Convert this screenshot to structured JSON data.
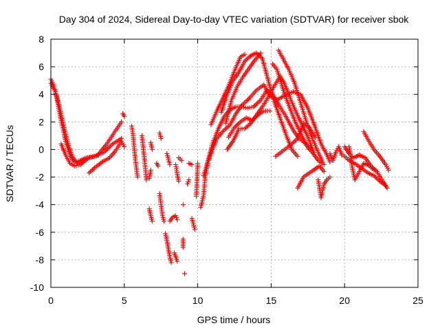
{
  "colors": {
    "series": "#ff0000",
    "grid": "#a0a0a0",
    "axis": "#000000"
  },
  "chart_data": {
    "type": "scatter",
    "title": "Day 304 of 2024, Sidereal Day-to-day VTEC variation (SDTVAR) for receiver sbok",
    "xlabel": "GPS time / hours",
    "ylabel": "SDTVAR / TECUs",
    "xlim": [
      0,
      25
    ],
    "ylim": [
      -10,
      8
    ],
    "xticks": [
      0,
      5,
      10,
      15,
      20,
      25
    ],
    "yticks": [
      -10,
      -8,
      -6,
      -4,
      -2,
      0,
      2,
      4,
      6,
      8
    ],
    "grid": true,
    "marker": "+",
    "traces": [
      [
        [
          0.0,
          5.1
        ],
        [
          0.2,
          4.6
        ],
        [
          0.4,
          3.8
        ],
        [
          0.6,
          2.6
        ],
        [
          0.8,
          1.6
        ],
        [
          1.0,
          0.6
        ],
        [
          1.3,
          -0.4
        ],
        [
          1.6,
          -0.9
        ],
        [
          2.0,
          -0.8
        ],
        [
          2.4,
          -0.6
        ],
        [
          3.0,
          -0.5
        ],
        [
          3.6,
          -0.2
        ],
        [
          4.2,
          0.4
        ],
        [
          4.8,
          0.8
        ]
      ],
      [
        [
          0.0,
          4.8
        ],
        [
          0.3,
          4.2
        ],
        [
          0.6,
          3.0
        ],
        [
          0.9,
          1.6
        ],
        [
          1.2,
          0.3
        ],
        [
          1.5,
          -0.6
        ],
        [
          1.8,
          -1.0
        ],
        [
          2.2,
          -0.9
        ],
        [
          2.6,
          -0.6
        ],
        [
          3.2,
          -0.4
        ],
        [
          3.8,
          0.4
        ],
        [
          4.3,
          1.2
        ],
        [
          4.8,
          2.0
        ]
      ],
      [
        [
          0.7,
          0.4
        ],
        [
          1.0,
          -0.4
        ],
        [
          1.3,
          -1.0
        ],
        [
          1.6,
          -1.2
        ],
        [
          2.0,
          -1.1
        ],
        [
          2.5,
          -0.6
        ]
      ],
      [
        [
          2.6,
          -1.7
        ],
        [
          3.0,
          -1.3
        ],
        [
          3.5,
          -0.9
        ],
        [
          4.0,
          -0.6
        ],
        [
          4.4,
          -0.1
        ],
        [
          4.8,
          0.6
        ],
        [
          5.0,
          0.2
        ]
      ],
      [
        [
          4.9,
          2.6
        ],
        [
          5.0,
          2.4
        ]
      ],
      [
        [
          5.5,
          1.7
        ],
        [
          5.6,
          1.0
        ],
        [
          5.7,
          -0.2
        ],
        [
          5.8,
          -1.2
        ],
        [
          5.9,
          -2.0
        ]
      ],
      [
        [
          6.2,
          1.0
        ],
        [
          6.3,
          0.0
        ],
        [
          6.4,
          -1.0
        ],
        [
          6.5,
          -2.2
        ]
      ],
      [
        [
          6.7,
          -2.1
        ],
        [
          6.8,
          -1.5
        ]
      ],
      [
        [
          6.8,
          0.5
        ],
        [
          6.9,
          0.0
        ]
      ],
      [
        [
          6.7,
          -4.3
        ],
        [
          6.8,
          -4.8
        ],
        [
          6.9,
          -5.2
        ]
      ],
      [
        [
          7.4,
          1.2
        ],
        [
          7.5,
          0.8
        ]
      ],
      [
        [
          7.2,
          -1.0
        ],
        [
          7.3,
          -1.2
        ]
      ],
      [
        [
          7.4,
          -3.2
        ],
        [
          7.5,
          -4.0
        ],
        [
          7.6,
          -4.8
        ],
        [
          7.7,
          -5.2
        ]
      ],
      [
        [
          7.8,
          -6.1
        ],
        [
          7.9,
          -6.6
        ],
        [
          8.0,
          -7.2
        ],
        [
          8.1,
          -7.8
        ],
        [
          8.2,
          -8.2
        ]
      ],
      [
        [
          7.9,
          -0.3
        ],
        [
          8.0,
          -0.7
        ],
        [
          8.1,
          -1.1
        ]
      ],
      [
        [
          8.1,
          -5.2
        ],
        [
          8.3,
          -4.9
        ],
        [
          8.5,
          -4.8
        ],
        [
          8.6,
          -5.1
        ]
      ],
      [
        [
          8.4,
          -7.5
        ],
        [
          8.6,
          -8.1
        ]
      ],
      [
        [
          8.5,
          -1.1
        ],
        [
          8.6,
          -1.8
        ],
        [
          8.7,
          -2.3
        ]
      ],
      [
        [
          8.7,
          -0.6
        ],
        [
          8.9,
          -0.8
        ]
      ],
      [
        [
          9.0,
          -4.0
        ]
      ],
      [
        [
          9.0,
          -6.5
        ],
        [
          9.0,
          -7.1
        ]
      ],
      [
        [
          9.1,
          -9.0
        ]
      ],
      [
        [
          9.3,
          -2.5
        ],
        [
          9.4,
          -2.2
        ]
      ],
      [
        [
          9.4,
          -1.0
        ],
        [
          9.6,
          -1.1
        ]
      ],
      [
        [
          9.6,
          -5.0
        ],
        [
          9.7,
          -5.4
        ],
        [
          9.8,
          -5.8
        ]
      ],
      [
        [
          9.9,
          -3.4
        ],
        [
          10.0,
          -1.0
        ]
      ],
      [
        [
          10.2,
          -4.2
        ],
        [
          10.4,
          -3.3
        ],
        [
          10.5,
          -2.0
        ],
        [
          10.7,
          -0.9
        ],
        [
          11.0,
          0.0
        ],
        [
          11.3,
          0.8
        ],
        [
          11.7,
          1.3
        ],
        [
          12.2,
          1.8
        ],
        [
          12.6,
          2.6
        ],
        [
          13.0,
          3.2
        ],
        [
          13.5,
          3.7
        ],
        [
          14.0,
          4.3
        ],
        [
          14.5,
          4.7
        ],
        [
          14.9,
          3.9
        ],
        [
          15.4,
          3.6
        ],
        [
          15.9,
          3.9
        ],
        [
          16.5,
          4.2
        ],
        [
          17.0,
          4.0
        ],
        [
          17.5,
          3.0
        ],
        [
          18.0,
          1.6
        ],
        [
          18.4,
          0.4
        ],
        [
          18.8,
          -0.4
        ],
        [
          19.0,
          -0.9
        ]
      ],
      [
        [
          10.4,
          -1.9
        ],
        [
          10.7,
          -0.8
        ],
        [
          11.0,
          0.4
        ],
        [
          11.4,
          1.5
        ],
        [
          11.8,
          2.4
        ],
        [
          12.2,
          2.9
        ],
        [
          12.6,
          3.1
        ],
        [
          13.0,
          3.1
        ],
        [
          13.4,
          3.0
        ],
        [
          13.8,
          3.1
        ],
        [
          14.3,
          3.6
        ],
        [
          14.7,
          4.3
        ],
        [
          15.1,
          4.0
        ],
        [
          15.6,
          3.1
        ],
        [
          16.0,
          2.4
        ],
        [
          16.5,
          1.4
        ],
        [
          16.9,
          0.8
        ],
        [
          17.4,
          0.4
        ],
        [
          17.8,
          -0.2
        ],
        [
          18.2,
          -0.8
        ],
        [
          18.6,
          -1.1
        ]
      ],
      [
        [
          10.9,
          1.8
        ],
        [
          11.3,
          2.8
        ],
        [
          11.7,
          3.7
        ],
        [
          12.1,
          4.6
        ],
        [
          12.5,
          5.7
        ],
        [
          12.9,
          6.7
        ],
        [
          13.2,
          6.9
        ]
      ],
      [
        [
          11.6,
          2.7
        ],
        [
          12.0,
          4.0
        ],
        [
          12.4,
          5.0
        ],
        [
          12.8,
          5.6
        ],
        [
          13.2,
          6.4
        ],
        [
          13.6,
          6.8
        ],
        [
          14.0,
          7.0
        ],
        [
          14.4,
          6.6
        ],
        [
          14.8,
          5.0
        ],
        [
          15.2,
          3.5
        ],
        [
          15.6,
          2.3
        ],
        [
          16.0,
          1.1
        ],
        [
          16.4,
          0.0
        ],
        [
          16.8,
          -0.5
        ]
      ],
      [
        [
          11.9,
          1.9
        ],
        [
          12.3,
          3.6
        ],
        [
          12.7,
          4.6
        ],
        [
          13.1,
          5.3
        ],
        [
          13.5,
          5.9
        ],
        [
          13.9,
          6.5
        ],
        [
          14.3,
          7.0
        ]
      ],
      [
        [
          12.0,
          0.0
        ],
        [
          12.4,
          0.6
        ],
        [
          12.8,
          1.5
        ],
        [
          13.2,
          1.5
        ],
        [
          13.6,
          1.9
        ],
        [
          14.0,
          2.5
        ],
        [
          14.4,
          3.1
        ],
        [
          14.8,
          3.8
        ],
        [
          15.2,
          4.6
        ],
        [
          15.6,
          5.3
        ],
        [
          15.9,
          4.8
        ],
        [
          16.3,
          3.7
        ],
        [
          16.7,
          2.7
        ],
        [
          17.1,
          1.8
        ],
        [
          17.5,
          0.9
        ],
        [
          17.9,
          -0.2
        ]
      ],
      [
        [
          12.1,
          0.9
        ],
        [
          12.5,
          1.6
        ],
        [
          12.9,
          2.0
        ],
        [
          13.3,
          2.3
        ],
        [
          13.7,
          2.1
        ],
        [
          14.1,
          2.5
        ],
        [
          14.5,
          2.8
        ],
        [
          14.9,
          2.8
        ]
      ],
      [
        [
          15.1,
          6.2
        ],
        [
          15.4,
          5.8
        ],
        [
          15.8,
          4.4
        ],
        [
          16.2,
          3.2
        ],
        [
          16.6,
          2.1
        ],
        [
          17.0,
          1.2
        ],
        [
          17.4,
          0.3
        ],
        [
          17.6,
          0.0
        ]
      ],
      [
        [
          15.5,
          7.2
        ],
        [
          15.8,
          6.6
        ],
        [
          16.2,
          5.8
        ],
        [
          16.6,
          4.8
        ],
        [
          17.0,
          3.4
        ],
        [
          17.4,
          2.0
        ],
        [
          17.8,
          0.8
        ],
        [
          18.2,
          -0.2
        ],
        [
          18.5,
          -0.9
        ]
      ],
      [
        [
          15.3,
          -0.5
        ],
        [
          15.8,
          -0.1
        ],
        [
          16.3,
          0.3
        ],
        [
          16.8,
          0.8
        ],
        [
          17.2,
          1.9
        ],
        [
          17.6,
          1.6
        ],
        [
          18.0,
          0.9
        ]
      ],
      [
        [
          16.8,
          -2.8
        ],
        [
          17.2,
          -2.0
        ],
        [
          17.6,
          -1.7
        ],
        [
          18.0,
          -1.4
        ],
        [
          18.3,
          -1.2
        ],
        [
          18.6,
          -1.6
        ]
      ],
      [
        [
          18.2,
          -2.2
        ],
        [
          18.4,
          -3.5
        ],
        [
          18.6,
          -2.5
        ],
        [
          18.8,
          -2.2
        ],
        [
          19.0,
          -2.0
        ]
      ],
      [
        [
          19.0,
          -0.3
        ],
        [
          19.2,
          -0.8
        ],
        [
          19.4,
          -0.2
        ],
        [
          19.6,
          0.2
        ],
        [
          19.8,
          -0.4
        ]
      ],
      [
        [
          20.0,
          0.2
        ],
        [
          20.3,
          -0.3
        ],
        [
          20.6,
          -0.6
        ],
        [
          21.0,
          -0.4
        ],
        [
          21.4,
          -0.6
        ],
        [
          21.8,
          -1.2
        ],
        [
          22.2,
          -1.6
        ],
        [
          22.6,
          -2.3
        ],
        [
          22.9,
          -2.8
        ]
      ],
      [
        [
          19.9,
          -0.4
        ],
        [
          20.2,
          -0.7
        ],
        [
          20.5,
          -0.9
        ],
        [
          20.8,
          -1.1
        ],
        [
          21.2,
          -1.4
        ],
        [
          21.6,
          -1.7
        ],
        [
          22.0,
          -1.9
        ],
        [
          22.4,
          -2.3
        ],
        [
          22.8,
          -2.6
        ]
      ],
      [
        [
          20.3,
          0.2
        ],
        [
          20.4,
          -0.4
        ],
        [
          20.5,
          -1.2
        ],
        [
          20.7,
          -2.2
        ],
        [
          21.0,
          -1.6
        ],
        [
          21.3,
          -1.0
        ],
        [
          21.7,
          -1.2
        ],
        [
          22.0,
          -1.5
        ]
      ],
      [
        [
          21.3,
          1.3
        ],
        [
          21.6,
          0.7
        ],
        [
          22.0,
          0.0
        ],
        [
          22.4,
          -0.5
        ],
        [
          22.8,
          -1.1
        ],
        [
          23.0,
          -1.5
        ]
      ]
    ]
  }
}
